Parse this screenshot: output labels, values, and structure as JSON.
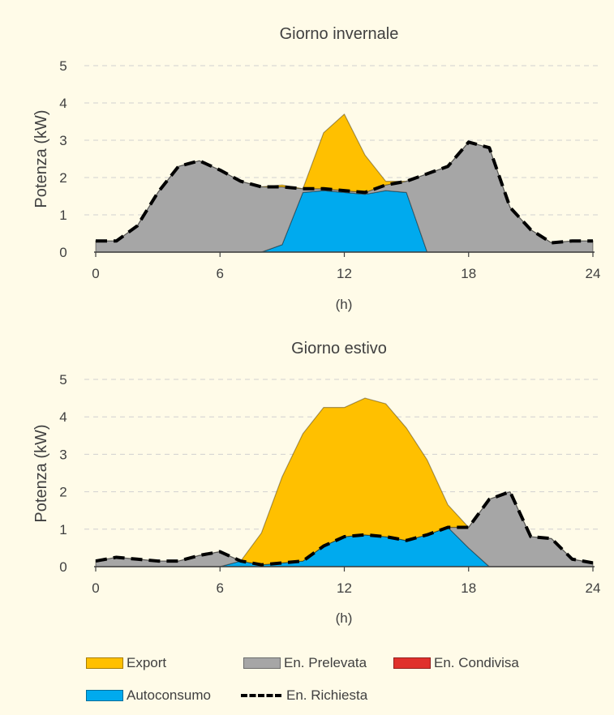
{
  "colors": {
    "export": "#ffc000",
    "prelevata": "#a6a6a6",
    "condivisa": "#e0302c",
    "autoconsumo": "#00aaee",
    "richiesta": "#000000",
    "grid": "#d0d0d0"
  },
  "legend": {
    "export": "Export",
    "prelevata": "En. Prelevata",
    "condivisa": "En. Condivisa",
    "autoconsumo": "Autoconsumo",
    "richiesta": "En. Richiesta"
  },
  "chart_data": [
    {
      "type": "area",
      "title": "Giorno invernale",
      "xlabel": "(h)",
      "ylabel": "Potenza (kW)",
      "xlim": [
        0,
        24
      ],
      "ylim": [
        0,
        5
      ],
      "xticks": [
        "0",
        "6",
        "12",
        "18",
        "24"
      ],
      "yticks": [
        "0",
        "1",
        "2",
        "3",
        "4",
        "5"
      ],
      "grid": true,
      "x": [
        0,
        1,
        2,
        3,
        4,
        5,
        6,
        7,
        8,
        9,
        10,
        11,
        12,
        13,
        14,
        15,
        16,
        17,
        18,
        19,
        20,
        21,
        22,
        23,
        24
      ],
      "series": [
        {
          "name": "Autoconsumo",
          "key": "autoconsumo",
          "values": [
            0,
            0,
            0,
            0,
            0,
            0,
            0,
            0,
            0,
            0.2,
            1.6,
            1.65,
            1.6,
            1.55,
            1.65,
            1.6,
            0,
            0,
            0,
            0,
            0,
            0,
            0,
            0,
            0
          ]
        },
        {
          "name": "En. Condivisa",
          "key": "condivisa",
          "values": [
            0,
            0,
            0,
            0,
            0,
            0,
            0,
            0,
            0,
            0,
            0,
            0,
            0,
            0,
            0,
            0,
            0,
            0,
            0,
            0,
            0,
            0,
            0,
            0,
            0
          ]
        },
        {
          "name": "En. Prelevata",
          "key": "prelevata",
          "values": [
            0.3,
            0.3,
            0.7,
            1.6,
            2.3,
            2.45,
            2.2,
            1.9,
            1.75,
            1.55,
            0.1,
            0.05,
            0.05,
            0.05,
            0.15,
            0.3,
            2.1,
            2.3,
            2.95,
            2.8,
            1.2,
            0.6,
            0.25,
            0.3,
            0.3
          ]
        },
        {
          "name": "Export",
          "key": "export",
          "values": [
            0,
            0,
            0,
            0,
            0,
            0,
            0,
            0,
            0,
            0.05,
            0,
            1.5,
            2.05,
            1.0,
            0.1,
            0,
            0,
            0,
            0,
            0,
            0,
            0,
            0,
            0,
            0
          ]
        },
        {
          "name": "En. Richiesta",
          "key": "richiesta",
          "line": true,
          "values": [
            0.3,
            0.3,
            0.7,
            1.6,
            2.3,
            2.45,
            2.2,
            1.9,
            1.75,
            1.75,
            1.7,
            1.7,
            1.65,
            1.6,
            1.8,
            1.9,
            2.1,
            2.3,
            2.95,
            2.8,
            1.2,
            0.6,
            0.25,
            0.3,
            0.3
          ]
        }
      ]
    },
    {
      "type": "area",
      "title": "Giorno estivo",
      "xlabel": "(h)",
      "ylabel": "Potenza (kW)",
      "xlim": [
        0,
        24
      ],
      "ylim": [
        0,
        5
      ],
      "xticks": [
        "0",
        "6",
        "12",
        "18",
        "24"
      ],
      "yticks": [
        "0",
        "1",
        "2",
        "3",
        "4",
        "5"
      ],
      "grid": true,
      "x": [
        0,
        1,
        2,
        3,
        4,
        5,
        6,
        7,
        8,
        9,
        10,
        11,
        12,
        13,
        14,
        15,
        16,
        17,
        18,
        19,
        20,
        21,
        22,
        23,
        24
      ],
      "series": [
        {
          "name": "Autoconsumo",
          "key": "autoconsumo",
          "values": [
            0,
            0,
            0,
            0,
            0,
            0,
            0,
            0.15,
            0.05,
            0.1,
            0.15,
            0.55,
            0.8,
            0.85,
            0.8,
            0.7,
            0.85,
            1.05,
            0.5,
            0,
            0,
            0,
            0,
            0,
            0
          ]
        },
        {
          "name": "En. Condivisa",
          "key": "condivisa",
          "values": [
            0,
            0,
            0,
            0,
            0,
            0,
            0,
            0,
            0,
            0,
            0,
            0,
            0,
            0,
            0,
            0,
            0,
            0,
            0,
            0,
            0,
            0,
            0,
            0,
            0
          ]
        },
        {
          "name": "En. Prelevata",
          "key": "prelevata",
          "values": [
            0.15,
            0.25,
            0.2,
            0.15,
            0.15,
            0.3,
            0.4,
            0,
            0,
            0,
            0,
            0,
            0,
            0,
            0,
            0,
            0,
            0,
            0.55,
            1.8,
            2.0,
            0.8,
            0.75,
            0.2,
            0.1
          ]
        },
        {
          "name": "Export",
          "key": "export",
          "values": [
            0,
            0,
            0,
            0,
            0,
            0,
            0,
            0,
            0.85,
            2.3,
            3.4,
            3.7,
            3.45,
            3.65,
            3.55,
            3.0,
            2.0,
            0.6,
            0,
            0,
            0,
            0,
            0,
            0,
            0
          ]
        },
        {
          "name": "En. Richiesta",
          "key": "richiesta",
          "line": true,
          "values": [
            0.15,
            0.25,
            0.2,
            0.15,
            0.15,
            0.3,
            0.4,
            0.15,
            0.05,
            0.1,
            0.15,
            0.55,
            0.8,
            0.85,
            0.8,
            0.7,
            0.85,
            1.05,
            1.05,
            1.8,
            2.0,
            0.8,
            0.75,
            0.2,
            0.1
          ]
        }
      ]
    }
  ]
}
